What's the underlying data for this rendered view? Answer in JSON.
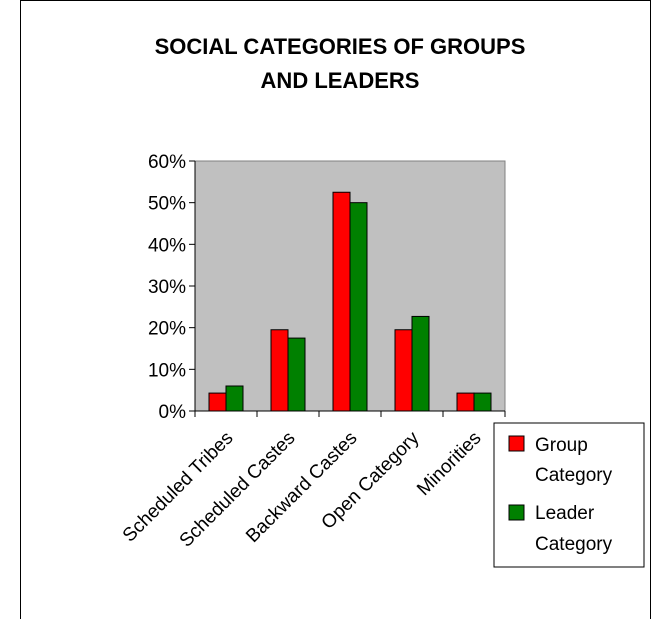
{
  "chart_data": {
    "type": "bar",
    "title_lines": [
      "SOCIAL CATEGORIES OF GROUPS",
      "AND LEADERS"
    ],
    "categories": [
      "Scheduled Tribes",
      "Scheduled Castes",
      "Backward Castes",
      "Open Category",
      "Minorities"
    ],
    "series": [
      {
        "name_lines": [
          "Group",
          "Category"
        ],
        "color": "#ff0000",
        "values": [
          0.043,
          0.195,
          0.525,
          0.195,
          0.043
        ]
      },
      {
        "name_lines": [
          "Leader",
          "Category"
        ],
        "color": "#008000",
        "values": [
          0.06,
          0.175,
          0.5,
          0.227,
          0.043
        ]
      }
    ],
    "ylim": [
      0,
      0.6
    ],
    "yticks": [
      "0%",
      "10%",
      "20%",
      "30%",
      "40%",
      "50%",
      "60%"
    ],
    "plot_background": "#c0c0c0",
    "legend_position": "right",
    "grid": false
  }
}
